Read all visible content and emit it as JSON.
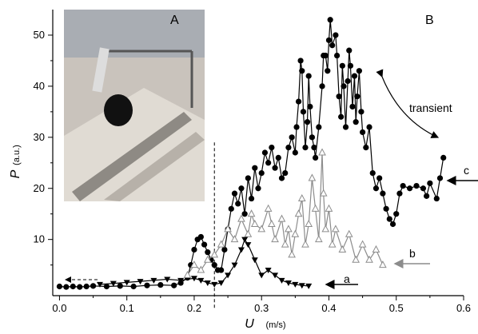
{
  "chart_data": {
    "type": "scatter",
    "xlabel": "U",
    "xunit": "(m/s)",
    "ylabel": "P",
    "yunit": "(a.u.)",
    "xlim": [
      -0.01,
      0.6
    ],
    "ylim": [
      -1,
      55
    ],
    "xticks": [
      "0.0",
      "0.1",
      "0.2",
      "0.3",
      "0.4",
      "0.5",
      "0.6"
    ],
    "yticks": [
      "10",
      "20",
      "30",
      "40",
      "50"
    ],
    "threshold_x": 0.23,
    "panels": {
      "inset": "A",
      "main": "B"
    },
    "annotations": {
      "transient": "transient",
      "a": "a",
      "b": "b",
      "c": "c"
    },
    "series": [
      {
        "label": "c",
        "marker": "circle-filled",
        "color": "#000000",
        "points": [
          [
            0.0,
            0.8
          ],
          [
            0.01,
            0.7
          ],
          [
            0.02,
            0.8
          ],
          [
            0.03,
            0.7
          ],
          [
            0.04,
            0.8
          ],
          [
            0.05,
            0.9
          ],
          [
            0.07,
            0.8
          ],
          [
            0.09,
            0.9
          ],
          [
            0.11,
            0.8
          ],
          [
            0.13,
            1.0
          ],
          [
            0.15,
            1.1
          ],
          [
            0.17,
            1.0
          ],
          [
            0.18,
            1.5
          ],
          [
            0.19,
            2.5
          ],
          [
            0.195,
            5
          ],
          [
            0.2,
            8
          ],
          [
            0.205,
            10
          ],
          [
            0.21,
            10.5
          ],
          [
            0.215,
            9
          ],
          [
            0.22,
            7.5
          ],
          [
            0.225,
            6
          ],
          [
            0.23,
            5
          ],
          [
            0.235,
            4
          ],
          [
            0.24,
            4
          ],
          [
            0.245,
            8
          ],
          [
            0.25,
            12
          ],
          [
            0.255,
            16
          ],
          [
            0.26,
            19
          ],
          [
            0.265,
            17
          ],
          [
            0.27,
            20
          ],
          [
            0.275,
            15
          ],
          [
            0.28,
            22
          ],
          [
            0.285,
            18
          ],
          [
            0.29,
            24
          ],
          [
            0.295,
            20
          ],
          [
            0.3,
            23
          ],
          [
            0.305,
            27
          ],
          [
            0.31,
            25
          ],
          [
            0.315,
            28
          ],
          [
            0.32,
            24
          ],
          [
            0.325,
            26
          ],
          [
            0.33,
            22
          ],
          [
            0.335,
            23
          ],
          [
            0.34,
            28
          ],
          [
            0.345,
            30
          ],
          [
            0.35,
            27
          ],
          [
            0.352,
            32
          ],
          [
            0.355,
            37
          ],
          [
            0.358,
            45
          ],
          [
            0.36,
            43
          ],
          [
            0.362,
            35
          ],
          [
            0.365,
            28
          ],
          [
            0.368,
            33
          ],
          [
            0.37,
            42
          ],
          [
            0.372,
            36
          ],
          [
            0.375,
            30
          ],
          [
            0.378,
            28
          ],
          [
            0.38,
            26
          ],
          [
            0.385,
            32
          ],
          [
            0.39,
            40
          ],
          [
            0.392,
            46
          ],
          [
            0.395,
            46
          ],
          [
            0.398,
            43
          ],
          [
            0.4,
            49
          ],
          [
            0.402,
            53
          ],
          [
            0.405,
            48
          ],
          [
            0.41,
            50
          ],
          [
            0.412,
            46
          ],
          [
            0.415,
            38
          ],
          [
            0.418,
            34
          ],
          [
            0.42,
            44
          ],
          [
            0.422,
            40
          ],
          [
            0.425,
            32
          ],
          [
            0.428,
            41
          ],
          [
            0.43,
            47
          ],
          [
            0.432,
            44
          ],
          [
            0.435,
            36
          ],
          [
            0.438,
            42
          ],
          [
            0.44,
            33
          ],
          [
            0.442,
            38
          ],
          [
            0.445,
            43
          ],
          [
            0.448,
            35
          ],
          [
            0.45,
            31
          ],
          [
            0.455,
            28
          ],
          [
            0.46,
            32
          ],
          [
            0.465,
            23
          ],
          [
            0.47,
            20
          ],
          [
            0.475,
            22
          ],
          [
            0.48,
            19
          ],
          [
            0.485,
            16
          ],
          [
            0.49,
            14
          ],
          [
            0.495,
            13
          ],
          [
            0.5,
            15
          ],
          [
            0.505,
            19
          ],
          [
            0.51,
            20.5
          ],
          [
            0.52,
            20
          ],
          [
            0.53,
            20.5
          ],
          [
            0.54,
            20
          ],
          [
            0.545,
            18.5
          ],
          [
            0.55,
            21
          ],
          [
            0.56,
            18
          ],
          [
            0.565,
            22
          ],
          [
            0.57,
            26
          ]
        ]
      },
      {
        "label": "b",
        "marker": "triangle-up-open",
        "color": "#8c8c8c",
        "points": [
          [
            0.19,
            3
          ],
          [
            0.2,
            5
          ],
          [
            0.21,
            4
          ],
          [
            0.22,
            6
          ],
          [
            0.23,
            7
          ],
          [
            0.24,
            9
          ],
          [
            0.25,
            12
          ],
          [
            0.26,
            10
          ],
          [
            0.27,
            14
          ],
          [
            0.28,
            11
          ],
          [
            0.285,
            15
          ],
          [
            0.29,
            13
          ],
          [
            0.3,
            12
          ],
          [
            0.31,
            16
          ],
          [
            0.315,
            13
          ],
          [
            0.32,
            10
          ],
          [
            0.33,
            14
          ],
          [
            0.335,
            9
          ],
          [
            0.34,
            12
          ],
          [
            0.345,
            7
          ],
          [
            0.35,
            11
          ],
          [
            0.355,
            15
          ],
          [
            0.36,
            18
          ],
          [
            0.365,
            9
          ],
          [
            0.37,
            13
          ],
          [
            0.375,
            22
          ],
          [
            0.38,
            16
          ],
          [
            0.385,
            10
          ],
          [
            0.39,
            27
          ],
          [
            0.392,
            19
          ],
          [
            0.395,
            12
          ],
          [
            0.4,
            16
          ],
          [
            0.405,
            9
          ],
          [
            0.41,
            12
          ],
          [
            0.42,
            8
          ],
          [
            0.43,
            11
          ],
          [
            0.44,
            6
          ],
          [
            0.45,
            9
          ],
          [
            0.46,
            6
          ],
          [
            0.47,
            8
          ],
          [
            0.48,
            5
          ]
        ]
      },
      {
        "label": "a",
        "marker": "triangle-down-filled",
        "color": "#000000",
        "points": [
          [
            0.06,
            1.2
          ],
          [
            0.08,
            1.4
          ],
          [
            0.1,
            1.6
          ],
          [
            0.12,
            1.8
          ],
          [
            0.14,
            2.0
          ],
          [
            0.16,
            2.2
          ],
          [
            0.18,
            2.0
          ],
          [
            0.2,
            2.4
          ],
          [
            0.21,
            2.0
          ],
          [
            0.22,
            1.5
          ],
          [
            0.23,
            1.2
          ],
          [
            0.24,
            1.5
          ],
          [
            0.25,
            3
          ],
          [
            0.26,
            5
          ],
          [
            0.27,
            8
          ],
          [
            0.275,
            10
          ],
          [
            0.28,
            9
          ],
          [
            0.29,
            6
          ],
          [
            0.3,
            3
          ],
          [
            0.31,
            4
          ],
          [
            0.32,
            3
          ],
          [
            0.33,
            2
          ],
          [
            0.34,
            1.5
          ],
          [
            0.35,
            1.2
          ],
          [
            0.36,
            1.0
          ],
          [
            0.37,
            0.9
          ]
        ]
      }
    ]
  }
}
